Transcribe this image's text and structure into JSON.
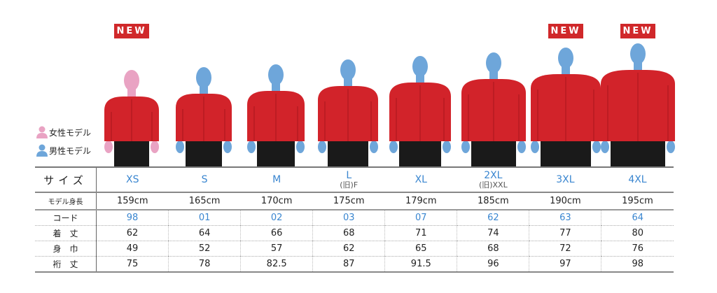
{
  "badge_label": "NEW",
  "colors": {
    "jacket": "#d2232a",
    "female": "#e9a3c3",
    "male": "#6ea6da",
    "size_text": "#3a86d0",
    "badge": "#d0282a"
  },
  "legend": [
    {
      "label": "女性モデル",
      "icon": "female-person-icon"
    },
    {
      "label": "男性モデル",
      "icon": "male-person-icon"
    }
  ],
  "columns": [
    {
      "size": "XS",
      "old": "",
      "height": "159cm",
      "code": "98",
      "length": "62",
      "width": "49",
      "sleeve": "75",
      "model": "female",
      "new": true
    },
    {
      "size": "S",
      "old": "",
      "height": "165cm",
      "code": "01",
      "length": "64",
      "width": "52",
      "sleeve": "78",
      "model": "male",
      "new": false
    },
    {
      "size": "M",
      "old": "",
      "height": "170cm",
      "code": "02",
      "length": "66",
      "width": "57",
      "sleeve": "82.5",
      "model": "male",
      "new": false
    },
    {
      "size": "L",
      "old": "(旧)F",
      "height": "175cm",
      "code": "03",
      "length": "68",
      "width": "62",
      "sleeve": "87",
      "model": "male",
      "new": false
    },
    {
      "size": "XL",
      "old": "",
      "height": "179cm",
      "code": "07",
      "length": "71",
      "width": "65",
      "sleeve": "91.5",
      "model": "male",
      "new": false
    },
    {
      "size": "2XL",
      "old": "(旧)XXL",
      "height": "185cm",
      "code": "62",
      "length": "74",
      "width": "68",
      "sleeve": "96",
      "model": "male",
      "new": false
    },
    {
      "size": "3XL",
      "old": "",
      "height": "190cm",
      "code": "63",
      "length": "77",
      "width": "72",
      "sleeve": "97",
      "model": "male",
      "new": true
    },
    {
      "size": "4XL",
      "old": "",
      "height": "195cm",
      "code": "64",
      "length": "80",
      "width": "76",
      "sleeve": "98",
      "model": "male",
      "new": true
    }
  ],
  "row_labels": {
    "size": "サイズ",
    "height": "モデル身長",
    "code": "コード",
    "length": "着　丈",
    "width": "身　巾",
    "sleeve": "裄　丈"
  }
}
